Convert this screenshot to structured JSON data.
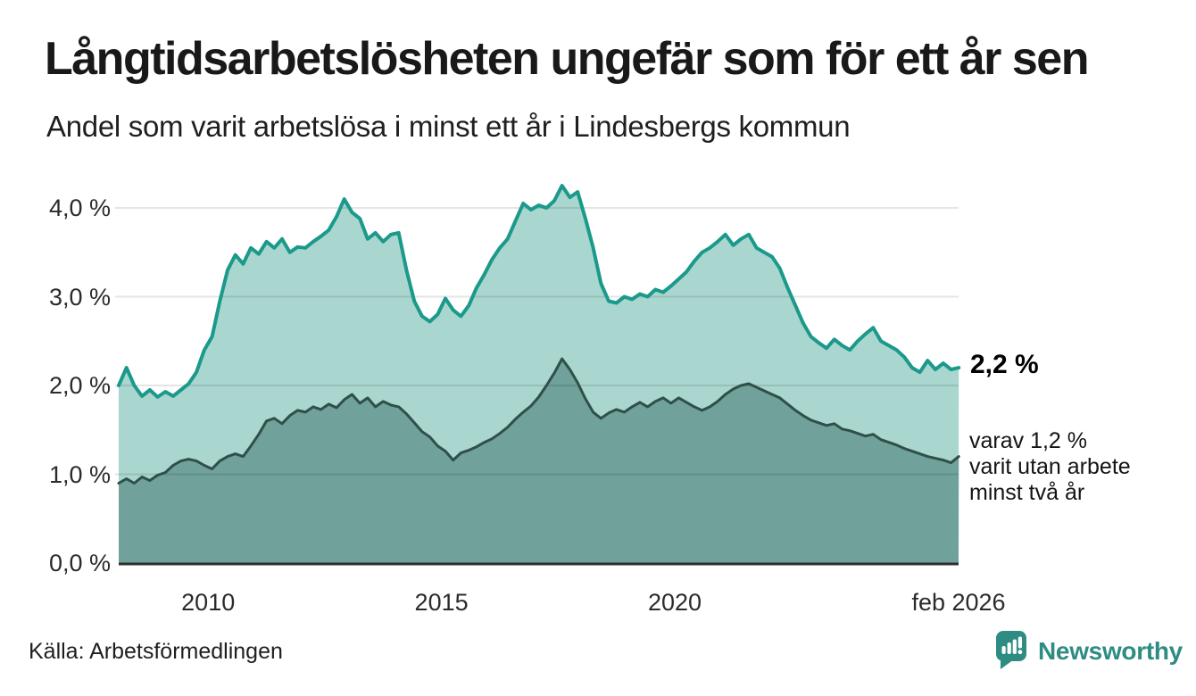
{
  "header": {
    "title": "Långtidsarbetslösheten ungefär som för ett år sen",
    "subtitle": "Andel som varit arbetslösa i minst ett år i Lindesbergs kommun"
  },
  "annotations": {
    "latest_value": "2,2 %",
    "sub_line1": "varav 1,2 %",
    "sub_line2": "varit utan arbete",
    "sub_line3": "minst två år"
  },
  "footer": {
    "source": "Källa: Arbetsförmedlingen",
    "brand": "Newsworthy"
  },
  "colors": {
    "accent": "#2e8c82",
    "grid": "rgba(0,0,0,0.10)",
    "axis_line": "#2e2e2e",
    "series1_line": "#1b998b",
    "series1_fill": "#a9d6cf",
    "series2_line": "#2f5049",
    "series2_fill": "#70a19a"
  },
  "chart_data": {
    "type": "area",
    "title": "Långtidsarbetslösheten ungefär som för ett år sen",
    "subtitle": "Andel som varit arbetslösa i minst ett år i Lindesbergs kommun",
    "grid": true,
    "legend": "none (direct labels at line ends)",
    "x_start": 2008.083,
    "x_end": 2026.083,
    "x_step": 0.1667,
    "ylim": [
      0,
      4.4
    ],
    "y_ticks": [
      {
        "v": 0,
        "label": "0,0 %"
      },
      {
        "v": 1,
        "label": "1,0 %"
      },
      {
        "v": 2,
        "label": "2,0 %"
      },
      {
        "v": 3,
        "label": "3,0 %"
      },
      {
        "v": 4,
        "label": "4,0 %"
      }
    ],
    "x_ticks": [
      {
        "x": 2010,
        "label": "2010"
      },
      {
        "x": 2015,
        "label": "2015"
      },
      {
        "x": 2020,
        "label": "2020"
      },
      {
        "x": 2026.083,
        "label": "feb 2026"
      }
    ],
    "series": [
      {
        "name": "Arbetslösa minst ett år",
        "end_label": "2,2 %",
        "line_color": "#1b998b",
        "fill_color": "#a9d6cf",
        "line_width": 4,
        "values": [
          2.0,
          2.2,
          2.0,
          1.88,
          1.95,
          1.87,
          1.93,
          1.88,
          1.95,
          2.02,
          2.15,
          2.4,
          2.55,
          2.95,
          3.3,
          3.47,
          3.37,
          3.55,
          3.48,
          3.62,
          3.55,
          3.65,
          3.5,
          3.56,
          3.55,
          3.62,
          3.68,
          3.75,
          3.9,
          4.1,
          3.95,
          3.88,
          3.65,
          3.72,
          3.62,
          3.7,
          3.72,
          3.3,
          2.95,
          2.78,
          2.72,
          2.8,
          2.98,
          2.85,
          2.78,
          2.9,
          3.1,
          3.25,
          3.42,
          3.55,
          3.65,
          3.85,
          4.05,
          3.98,
          4.03,
          4.0,
          4.08,
          4.25,
          4.12,
          4.18,
          3.88,
          3.55,
          3.15,
          2.95,
          2.93,
          3.0,
          2.97,
          3.03,
          3.0,
          3.08,
          3.05,
          3.12,
          3.2,
          3.28,
          3.4,
          3.5,
          3.55,
          3.62,
          3.7,
          3.58,
          3.65,
          3.7,
          3.55,
          3.5,
          3.45,
          3.32,
          3.1,
          2.9,
          2.7,
          2.55,
          2.48,
          2.42,
          2.52,
          2.45,
          2.4,
          2.5,
          2.58,
          2.65,
          2.5,
          2.45,
          2.4,
          2.32,
          2.2,
          2.15,
          2.28,
          2.18,
          2.25,
          2.18,
          2.2
        ]
      },
      {
        "name": "varav utan arbete minst två år",
        "end_label": "1,2 %",
        "line_color": "#2f5049",
        "fill_color": "#70a19a",
        "line_width": 3,
        "values": [
          0.9,
          0.95,
          0.9,
          0.97,
          0.93,
          0.99,
          1.02,
          1.1,
          1.15,
          1.17,
          1.15,
          1.1,
          1.06,
          1.15,
          1.2,
          1.23,
          1.2,
          1.32,
          1.45,
          1.6,
          1.63,
          1.57,
          1.66,
          1.72,
          1.7,
          1.76,
          1.73,
          1.79,
          1.75,
          1.84,
          1.9,
          1.8,
          1.86,
          1.76,
          1.82,
          1.78,
          1.76,
          1.68,
          1.58,
          1.48,
          1.42,
          1.32,
          1.26,
          1.16,
          1.24,
          1.27,
          1.31,
          1.36,
          1.4,
          1.46,
          1.53,
          1.62,
          1.7,
          1.77,
          1.87,
          2.0,
          2.14,
          2.3,
          2.18,
          2.03,
          1.85,
          1.7,
          1.63,
          1.69,
          1.73,
          1.7,
          1.76,
          1.81,
          1.76,
          1.82,
          1.86,
          1.8,
          1.86,
          1.81,
          1.76,
          1.72,
          1.76,
          1.82,
          1.9,
          1.96,
          2.0,
          2.02,
          1.98,
          1.94,
          1.9,
          1.86,
          1.79,
          1.72,
          1.66,
          1.61,
          1.58,
          1.55,
          1.57,
          1.51,
          1.49,
          1.46,
          1.43,
          1.45,
          1.39,
          1.36,
          1.33,
          1.29,
          1.26,
          1.23,
          1.2,
          1.18,
          1.16,
          1.13,
          1.2
        ]
      }
    ]
  }
}
